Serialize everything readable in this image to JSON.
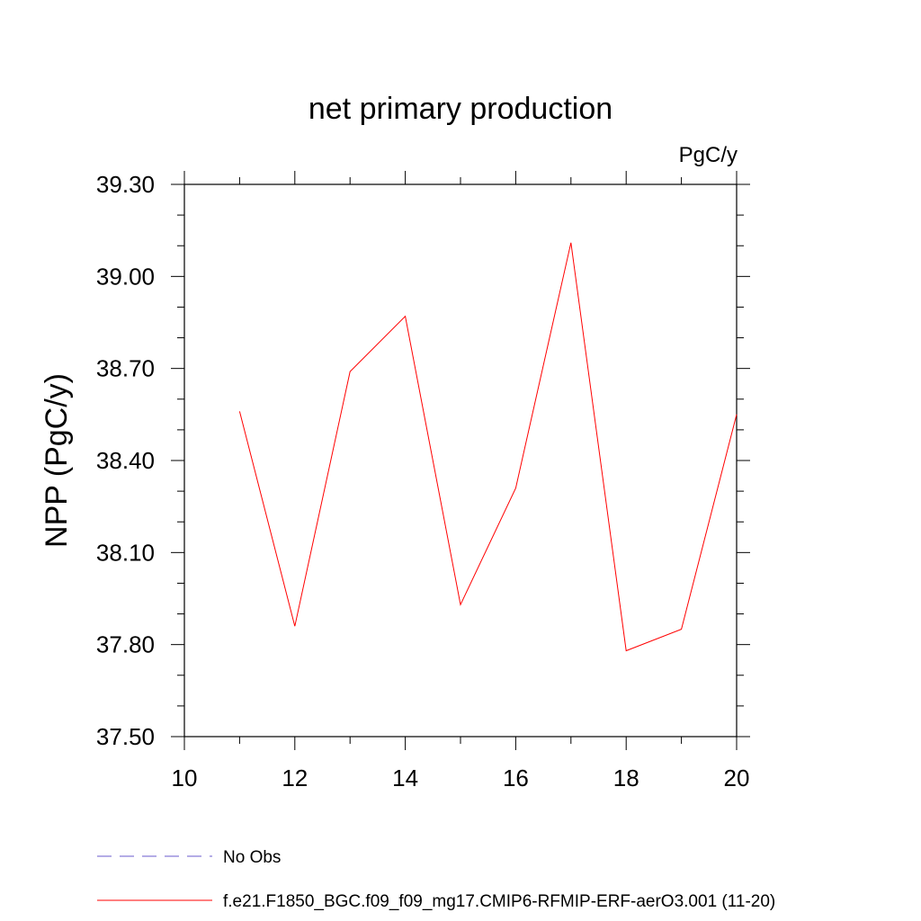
{
  "chart_data": {
    "type": "line",
    "title": "net primary production",
    "units_label": "PgC/y",
    "ylabel": "NPP  (PgC/y)",
    "xlabel": "",
    "xlim": [
      10,
      20
    ],
    "ylim": [
      37.5,
      39.3
    ],
    "xticks": [
      10,
      12,
      14,
      16,
      18,
      20
    ],
    "xtick_labels": [
      "10",
      "12",
      "14",
      "16",
      "18",
      "20"
    ],
    "yticks": [
      37.5,
      37.8,
      38.1,
      38.4,
      38.7,
      39.0,
      39.3
    ],
    "ytick_labels": [
      "37.50",
      "37.80",
      "38.10",
      "38.40",
      "38.70",
      "39.00",
      "39.30"
    ],
    "grid": false,
    "legend_position": "bottom-left",
    "legend": [
      {
        "label": "No Obs",
        "color": "#6a5acd",
        "style": "dashed"
      },
      {
        "label": "f.e21.F1850_BGC.f09_f09_mg17.CMIP6-RFMIP-ERF-aerO3.001 (11-20)",
        "color": "#ff0000",
        "style": "solid"
      }
    ],
    "series": [
      {
        "name": "f.e21.F1850_BGC.f09_f09_mg17.CMIP6-RFMIP-ERF-aerO3.001 (11-20)",
        "color": "#ff0000",
        "x": [
          11,
          12,
          13,
          14,
          15,
          16,
          17,
          18,
          19,
          20
        ],
        "y": [
          38.56,
          37.86,
          38.69,
          38.87,
          37.93,
          38.31,
          39.11,
          37.78,
          37.85,
          38.55
        ]
      }
    ]
  }
}
